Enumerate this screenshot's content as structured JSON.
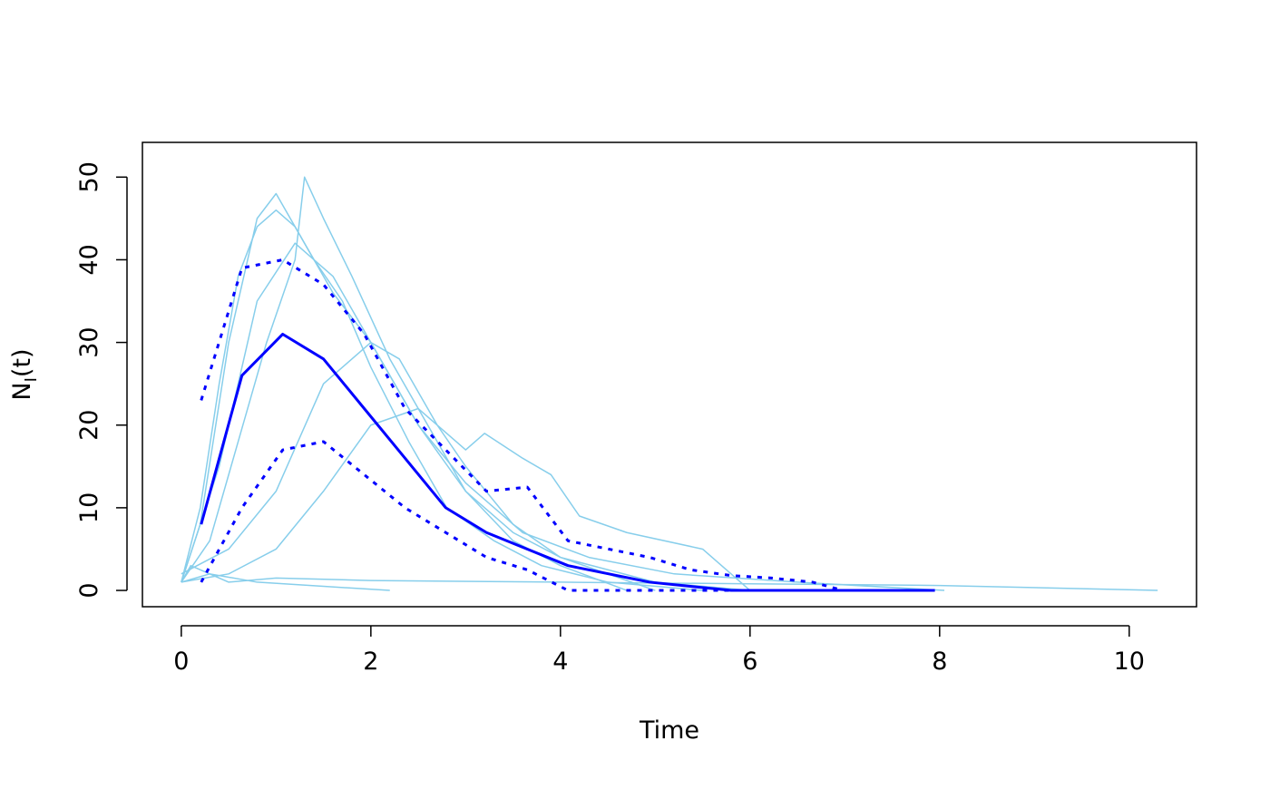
{
  "chart_data": {
    "type": "line",
    "x_label": "Time",
    "y_label": [
      "N",
      "I",
      "(t)"
    ],
    "xlim": [
      -0.41,
      10.71
    ],
    "ylim": [
      -1.97,
      54.2
    ],
    "xticks": [
      0,
      2,
      4,
      6,
      8,
      10
    ],
    "yticks": [
      0,
      10,
      20,
      30,
      40,
      50
    ],
    "grid": false,
    "series": [
      {
        "color": "#87CEEB",
        "line_style": "solid",
        "line_width": 1.5,
        "x": [
          0,
          0.2,
          0.4,
          0.6,
          0.8,
          1.0,
          1.2,
          1.4,
          1.7,
          2.0,
          2.4,
          2.8,
          3.3,
          3.8,
          4.5,
          5.5
        ],
        "values": [
          1,
          10,
          25,
          38,
          44,
          46,
          44,
          40,
          35,
          27,
          18,
          10,
          6,
          3,
          1,
          0
        ]
      },
      {
        "color": "#87CEEB",
        "line_style": "solid",
        "line_width": 1.5,
        "x": [
          0,
          0.3,
          0.6,
          0.9,
          1.2,
          1.3,
          1.5,
          1.8,
          2.2,
          2.6,
          3.0,
          3.5,
          4.0,
          5.0,
          6.0
        ],
        "values": [
          1,
          6,
          18,
          30,
          40,
          50,
          45,
          38,
          28,
          20,
          12,
          7,
          4,
          1,
          0
        ]
      },
      {
        "color": "#87CEEB",
        "line_style": "solid",
        "line_width": 1.5,
        "x": [
          0,
          0.5,
          1.0,
          1.5,
          2.0,
          2.5,
          3.0,
          3.2,
          3.6,
          3.9,
          4.2,
          4.7,
          5.5,
          6.0
        ],
        "values": [
          1,
          2,
          5,
          12,
          20,
          22,
          17,
          19,
          16,
          14,
          9,
          7,
          5,
          0
        ]
      },
      {
        "color": "#87CEEB",
        "line_style": "solid",
        "line_width": 1.5,
        "x": [
          0,
          0.1,
          0.3,
          0.5,
          1,
          2,
          4,
          6,
          8,
          10.3
        ],
        "values": [
          1,
          3,
          2,
          1,
          1.5,
          1.2,
          1,
          0.8,
          0.6,
          0
        ]
      },
      {
        "color": "#87CEEB",
        "line_style": "solid",
        "line_width": 1.5,
        "x": [
          0,
          0.3,
          0.8,
          1.5,
          2.2
        ],
        "values": [
          1,
          2,
          1,
          0.5,
          0
        ]
      },
      {
        "color": "#87CEEB",
        "line_style": "solid",
        "line_width": 1.5,
        "x": [
          0,
          0.2,
          0.5,
          0.8,
          1.0,
          1.3,
          1.6,
          2.0,
          2.5,
          3.0,
          3.6,
          4.3,
          5.2,
          6.5,
          8.05
        ],
        "values": [
          1,
          8,
          30,
          45,
          48,
          42,
          36,
          30,
          20,
          13,
          7,
          4,
          2,
          1,
          0
        ]
      },
      {
        "color": "#87CEEB",
        "line_style": "solid",
        "line_width": 1.5,
        "x": [
          0,
          0.5,
          1.0,
          1.5,
          2.0,
          2.3,
          2.7,
          3.0,
          3.5,
          4.0,
          4.5,
          5.0
        ],
        "values": [
          2,
          5,
          12,
          25,
          30,
          28,
          20,
          15,
          8,
          4,
          2,
          0
        ]
      },
      {
        "color": "#87CEEB",
        "line_style": "solid",
        "line_width": 1.5,
        "x": [
          0,
          0.4,
          0.8,
          1.2,
          1.6,
          2.0,
          2.5,
          3,
          3.5,
          4,
          4.7
        ],
        "values": [
          1,
          15,
          35,
          42,
          38,
          30,
          20,
          12,
          6,
          3,
          0
        ]
      },
      {
        "color": "#0000FF",
        "line_style": "solid",
        "line_width": 3,
        "x": [
          0.21,
          0.64,
          1.07,
          1.5,
          1.93,
          2.36,
          2.79,
          3.22,
          3.65,
          4.08,
          4.51,
          4.94,
          5.37,
          5.8,
          6.23,
          6.66,
          7.09,
          7.52,
          7.95
        ],
        "values": [
          8,
          26,
          31,
          28,
          22,
          16,
          10,
          7,
          5,
          3,
          2,
          1,
          0.5,
          0,
          0,
          0,
          0,
          0,
          0
        ]
      },
      {
        "color": "#0000FF",
        "line_style": "dashed",
        "line_width": 3,
        "x": [
          0.21,
          0.64,
          1.07,
          1.5,
          1.93,
          2.36,
          2.79,
          3.22,
          3.65,
          4.08,
          4.51,
          4.94,
          5.37,
          5.8,
          6.23,
          6.66,
          6.98
        ],
        "values": [
          23,
          39,
          40,
          37,
          31,
          22,
          17,
          12,
          12.5,
          6,
          5,
          4,
          2.5,
          1.8,
          1.5,
          1,
          0
        ]
      },
      {
        "color": "#0000FF",
        "line_style": "dashed",
        "line_width": 3,
        "x": [
          0.21,
          0.64,
          1.07,
          1.5,
          1.93,
          2.36,
          2.79,
          3.22,
          3.65,
          4.08,
          4.51,
          4.94,
          5.37,
          5.8,
          6.23,
          6.66,
          6.98
        ],
        "values": [
          1,
          10,
          17,
          18,
          14,
          10,
          7,
          4,
          2.5,
          0,
          0,
          0,
          0,
          0,
          0,
          0,
          0
        ]
      }
    ]
  }
}
